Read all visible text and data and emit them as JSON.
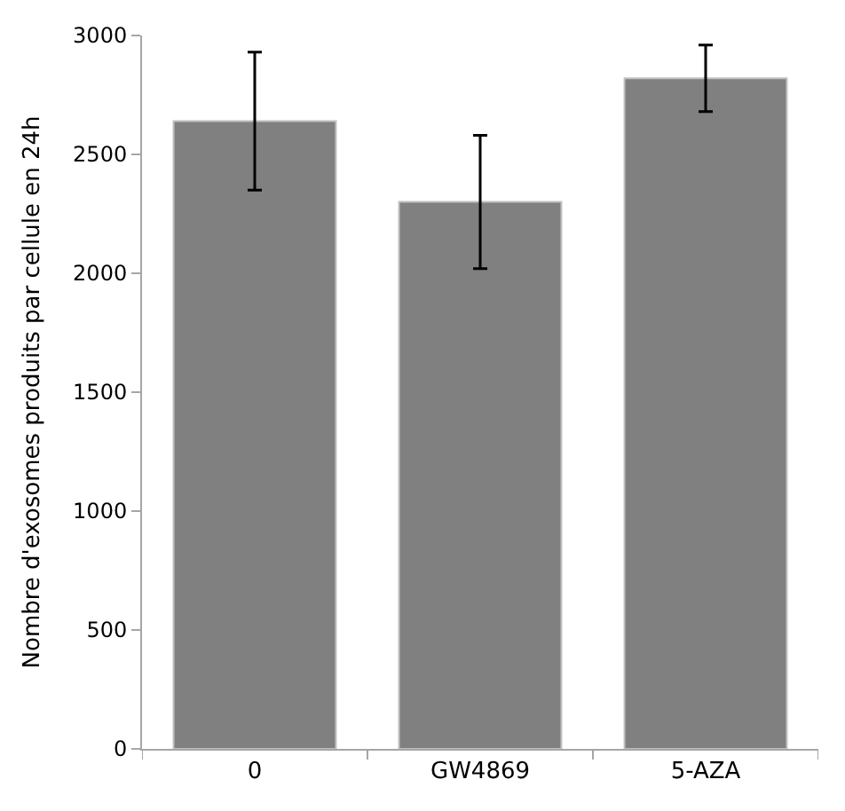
{
  "chart_data": {
    "type": "bar",
    "ylabel": "Nombre d'exosomes produits par cellule en 24h",
    "categories": [
      "0",
      "GW4869",
      "5-AZA"
    ],
    "values": [
      2640,
      2300,
      2820
    ],
    "errors": [
      290,
      280,
      140
    ],
    "color": "#808080",
    "ylim": [
      0,
      3000
    ],
    "yticks": [
      0,
      500,
      1000,
      1500,
      2000,
      2500,
      3000
    ]
  }
}
